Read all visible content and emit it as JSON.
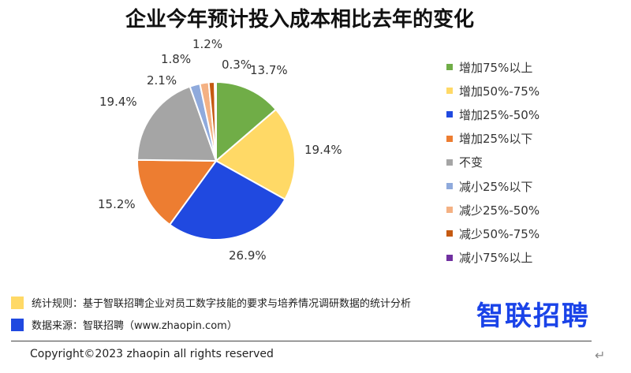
{
  "chart_data": {
    "type": "pie",
    "title": "企业今年预计投入成本相比去年的变化",
    "slices": [
      {
        "label": "增加75%以上",
        "value": 13.7,
        "value_label": "13.7%",
        "color": "#70ad47"
      },
      {
        "label": "增加50%-75%",
        "value": 19.4,
        "value_label": "19.4%",
        "color": "#ffd966"
      },
      {
        "label": "增加25%-50%",
        "value": 26.9,
        "value_label": "26.9%",
        "color": "#2049e0"
      },
      {
        "label": "增加25%以下",
        "value": 15.2,
        "value_label": "15.2%",
        "color": "#ed7d31"
      },
      {
        "label": "不变",
        "value": 19.4,
        "value_label": "19.4%",
        "color": "#a5a5a5"
      },
      {
        "label": "减小25%以下",
        "value": 2.1,
        "value_label": "2.1%",
        "color": "#8faadc"
      },
      {
        "label": "减少25%-50%",
        "value": 1.8,
        "value_label": "1.8%",
        "color": "#f4b183"
      },
      {
        "label": "减少50%-75%",
        "value": 1.2,
        "value_label": "1.2%",
        "color": "#c55a11"
      },
      {
        "label": "减小75%以上",
        "value": 0.3,
        "value_label": "0.3%",
        "color": "#7030a0"
      }
    ],
    "legend_position": "right"
  },
  "footnotes": [
    {
      "text": "统计规则：基于智联招聘企业对员工数字技能的要求与培养情况调研数据的统计分析",
      "color": "#ffd966"
    },
    {
      "text": "数据来源：智联招聘（www.zhaopin.com）",
      "color": "#2049e0"
    }
  ],
  "brand": {
    "logo_text": "智联招聘",
    "color": "#1a43e8"
  },
  "copyright": "Copyright©2023 zhaopin all rights reserved",
  "return_mark": "↵"
}
